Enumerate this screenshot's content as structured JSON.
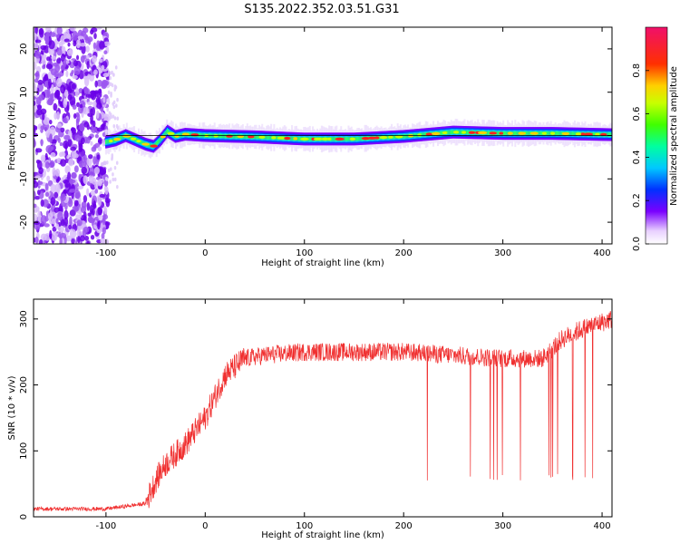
{
  "title": "S135.2022.352.03.51.G31",
  "chart_data": [
    {
      "type": "heatmap",
      "xlabel": "Height of straight line (km)",
      "ylabel": "Frequency (Hz)",
      "xlim": [
        -173,
        410
      ],
      "ylim": [
        -25,
        25
      ],
      "xticks": [
        -100,
        0,
        100,
        200,
        300,
        400
      ],
      "yticks": [
        -20,
        -10,
        0,
        10,
        20
      ],
      "colorbar": {
        "label": "Normalized spectral amplitude",
        "range": [
          0,
          1
        ],
        "ticks": [
          0.0,
          0.2,
          0.4,
          0.6,
          0.8
        ]
      },
      "ridge_frequency": {
        "x": [
          -100,
          -90,
          -80,
          -70,
          -60,
          -52,
          -45,
          -38,
          -30,
          -20,
          0,
          50,
          100,
          150,
          200,
          250,
          300,
          350,
          410
        ],
        "y": [
          -1.5,
          -1.0,
          0,
          -1.0,
          -2.0,
          -2.5,
          -1.0,
          1.0,
          -0.2,
          0.3,
          0,
          -0.3,
          -0.8,
          -0.8,
          -0.2,
          0.8,
          0.5,
          0.5,
          0.2
        ]
      }
    },
    {
      "type": "line",
      "xlabel": "Height of straight line (km)",
      "ylabel": "SNR (10 * v/v)",
      "xlim": [
        -173,
        410
      ],
      "ylim": [
        0,
        330
      ],
      "xticks": [
        -100,
        0,
        100,
        200,
        300,
        400
      ],
      "yticks": [
        0,
        100,
        200,
        300
      ],
      "series": [
        {
          "color": "#f03030",
          "x": [
            -173,
            -100,
            -60,
            -50,
            -40,
            -20,
            0,
            20,
            40,
            60,
            100,
            150,
            200,
            250,
            300,
            340,
            360,
            380,
            410
          ],
          "y": [
            12,
            12,
            20,
            55,
            80,
            110,
            150,
            215,
            240,
            245,
            250,
            250,
            250,
            245,
            240,
            240,
            270,
            285,
            300
          ]
        }
      ]
    }
  ]
}
